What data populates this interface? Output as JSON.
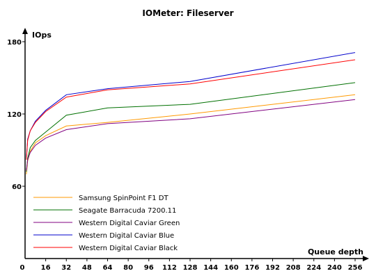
{
  "chart_data": {
    "type": "line",
    "title": "IOMeter: Fileserver",
    "xlabel": "Queue depth",
    "ylabel": "IOps",
    "x": [
      1,
      2,
      4,
      8,
      16,
      32,
      64,
      128,
      256
    ],
    "xticks": [
      0,
      16,
      32,
      48,
      64,
      80,
      96,
      112,
      128,
      144,
      160,
      176,
      192,
      208,
      224,
      240,
      256
    ],
    "yticks": [
      60,
      120,
      180
    ],
    "xlim": [
      0,
      256
    ],
    "ylim": [
      0,
      180
    ],
    "legend_position": "bottom-left",
    "grid": false,
    "series": [
      {
        "name": "Samsung SpinPoint F1 DT",
        "color": "#ff9900",
        "values": [
          70,
          81,
          89,
          96,
          102,
          110,
          113,
          120,
          136
        ]
      },
      {
        "name": "Seagate Barracuda 7200.11",
        "color": "#007000",
        "values": [
          72,
          83,
          92,
          98,
          105,
          119,
          125,
          128,
          146
        ]
      },
      {
        "name": "Western Digital Caviar Green",
        "color": "#800080",
        "values": [
          73,
          82,
          88,
          94,
          100,
          107,
          112,
          116,
          132
        ]
      },
      {
        "name": "Western Digital Caviar Blue",
        "color": "#0000cc",
        "values": [
          83,
          99,
          106,
          114,
          123,
          136,
          141,
          147,
          171
        ]
      },
      {
        "name": "Western Digital Caviar Black",
        "color": "#ff0000",
        "values": [
          82,
          98,
          106,
          113,
          122,
          134,
          140,
          145,
          165
        ]
      }
    ]
  }
}
